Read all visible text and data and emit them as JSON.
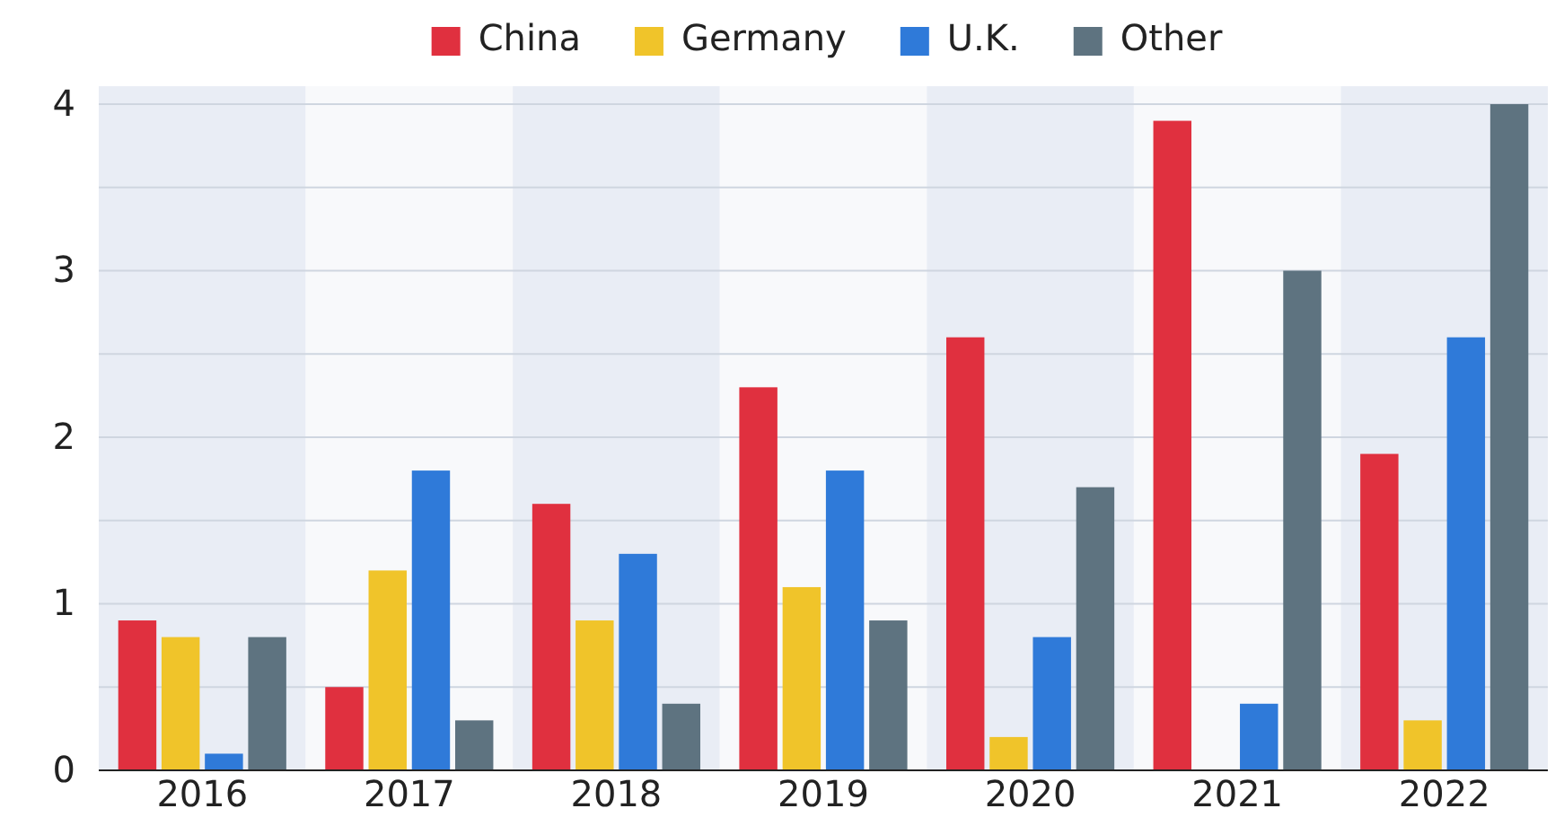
{
  "chart_data": {
    "type": "bar",
    "categories": [
      "2016",
      "2017",
      "2018",
      "2019",
      "2020",
      "2021",
      "2022"
    ],
    "series": [
      {
        "name": "China",
        "color": "#e0303f",
        "values": [
          0.9,
          0.5,
          1.6,
          2.3,
          2.6,
          3.9,
          1.9
        ]
      },
      {
        "name": "Germany",
        "color": "#f0c42a",
        "values": [
          0.8,
          1.2,
          0.9,
          1.1,
          0.2,
          null,
          0.3
        ]
      },
      {
        "name": "U.K.",
        "color": "#2f7ad9",
        "values": [
          0.1,
          1.8,
          1.3,
          1.8,
          0.8,
          0.4,
          2.6
        ]
      },
      {
        "name": "Other",
        "color": "#5e7380",
        "values": [
          0.8,
          0.3,
          0.4,
          0.9,
          1.7,
          3.0,
          4.0
        ]
      }
    ],
    "ylim": [
      0,
      4
    ],
    "yticks": [
      0,
      {
        "value": 0.5,
        "label": null
      },
      1,
      {
        "value": 1.5,
        "label": null
      },
      2,
      {
        "value": 2.5,
        "label": null
      },
      3,
      {
        "value": 3.5,
        "label": null
      },
      4
    ],
    "grid": "y",
    "legend": "top"
  }
}
